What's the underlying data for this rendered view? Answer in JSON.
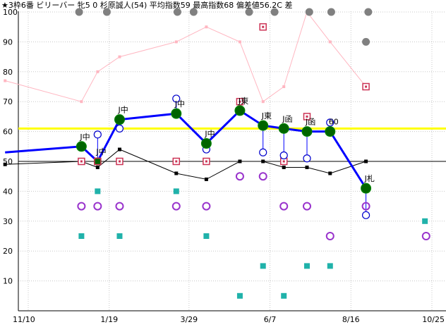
{
  "chart_data": {
    "type": "line",
    "title": "★3枠6番 ビリーバー 牝5 0 杉原誠人(54) 平均指数59 最高指数68 偏差値56.2C 差",
    "xlabel": "",
    "ylabel": "",
    "ylim": [
      0,
      100
    ],
    "yticks": [
      10,
      20,
      30,
      40,
      50,
      60,
      70,
      80,
      90,
      100
    ],
    "x_axis": {
      "ticks": [
        {
          "label": "11/10",
          "x": 0
        },
        {
          "label": "1/19",
          "x": 70
        },
        {
          "label": "3/29",
          "x": 139
        },
        {
          "label": "6/7",
          "x": 209
        },
        {
          "label": "8/16",
          "x": 279
        },
        {
          "label": "10/25",
          "x": 349
        }
      ],
      "range": [
        0,
        349
      ]
    },
    "avg_line": 61,
    "avg_line_color": "#ffff00",
    "ref_line": 50,
    "rows_top": [
      {
        "x": 44,
        "color": "#808080"
      },
      {
        "x": 68,
        "color": "#808080"
      },
      {
        "x": 129,
        "color": "#808080"
      },
      {
        "x": 143,
        "color": "#808080"
      },
      {
        "x": 191,
        "color": "#808080"
      },
      {
        "x": 213,
        "color": "#808080"
      },
      {
        "x": 243,
        "color": "#808080"
      },
      {
        "x": 262,
        "color": "#808080"
      },
      {
        "x": 294,
        "color": "#808080"
      }
    ],
    "series": [
      {
        "key": "main",
        "color": "#0000ff",
        "values": [
          [
            -20,
            53
          ],
          [
            46,
            55
          ],
          [
            60,
            50
          ],
          [
            79,
            64
          ],
          [
            128,
            66
          ],
          [
            154,
            56
          ],
          [
            183,
            67
          ],
          [
            203,
            62
          ],
          [
            221,
            61
          ],
          [
            241,
            60
          ],
          [
            261,
            60
          ],
          [
            292,
            41
          ]
        ],
        "markers": [
          [
            46,
            55
          ],
          [
            60,
            50
          ],
          [
            79,
            64
          ],
          [
            128,
            66
          ],
          [
            154,
            56
          ],
          [
            183,
            67
          ],
          [
            203,
            62
          ],
          [
            221,
            61
          ],
          [
            241,
            60
          ],
          [
            261,
            60
          ],
          [
            292,
            41
          ]
        ]
      },
      {
        "key": "black",
        "color": "#000000",
        "values": [
          [
            -20,
            49
          ],
          [
            46,
            50
          ],
          [
            60,
            48
          ],
          [
            79,
            54
          ],
          [
            128,
            46
          ],
          [
            154,
            44
          ],
          [
            183,
            50
          ],
          [
            203,
            50
          ],
          [
            221,
            48
          ],
          [
            241,
            48
          ],
          [
            261,
            46
          ],
          [
            292,
            50
          ]
        ]
      },
      {
        "key": "pink",
        "color": "#ffb6c1",
        "values": [
          [
            -20,
            77
          ],
          [
            46,
            70
          ],
          [
            60,
            80
          ],
          [
            79,
            85
          ],
          [
            128,
            90
          ],
          [
            154,
            95
          ],
          [
            183,
            90
          ],
          [
            203,
            70
          ],
          [
            221,
            75
          ],
          [
            241,
            100
          ],
          [
            261,
            90
          ],
          [
            292,
            75
          ]
        ]
      }
    ],
    "red_squares": [
      [
        46,
        50
      ],
      [
        60,
        50
      ],
      [
        79,
        50
      ],
      [
        128,
        50
      ],
      [
        154,
        50
      ],
      [
        183,
        70
      ],
      [
        203,
        95
      ],
      [
        221,
        50
      ],
      [
        241,
        65
      ],
      [
        292,
        75
      ]
    ],
    "blue_circles": [
      [
        60,
        59
      ],
      [
        79,
        61
      ],
      [
        128,
        71
      ],
      [
        154,
        54
      ],
      [
        203,
        53
      ],
      [
        221,
        52
      ],
      [
        241,
        51
      ],
      [
        261,
        63
      ],
      [
        292,
        32
      ]
    ],
    "blue_circles_sm": [
      [
        60,
        51
      ]
    ],
    "purple_circles": [
      [
        46,
        35
      ],
      [
        60,
        35
      ],
      [
        79,
        35
      ],
      [
        128,
        35
      ],
      [
        154,
        35
      ],
      [
        183,
        45
      ],
      [
        203,
        45
      ],
      [
        221,
        35
      ],
      [
        241,
        35
      ],
      [
        261,
        25
      ],
      [
        292,
        35
      ],
      [
        344,
        25
      ]
    ],
    "teal_squares": [
      [
        46,
        25
      ],
      [
        60,
        40
      ],
      [
        79,
        25
      ],
      [
        128,
        40
      ],
      [
        154,
        25
      ],
      [
        183,
        5
      ],
      [
        203,
        15
      ],
      [
        221,
        5
      ],
      [
        241,
        15
      ],
      [
        261,
        15
      ],
      [
        343,
        30
      ]
    ],
    "annotations": [
      {
        "x": 46,
        "y": 55,
        "text": "J中",
        "pos": "above"
      },
      {
        "x": 60,
        "y": 50,
        "text": "J中",
        "pos": "above"
      },
      {
        "x": 79,
        "y": 64,
        "text": "J中",
        "pos": "above"
      },
      {
        "x": 128,
        "y": 66,
        "text": "J中",
        "pos": "above"
      },
      {
        "x": 154,
        "y": 56,
        "text": "J中",
        "pos": "above"
      },
      {
        "x": 183,
        "y": 67,
        "text": "J東",
        "pos": "above"
      },
      {
        "x": 203,
        "y": 62,
        "text": "J東",
        "pos": "above"
      },
      {
        "x": 221,
        "y": 61,
        "text": "J函",
        "pos": "above"
      },
      {
        "x": 241,
        "y": 60,
        "text": "J函",
        "pos": "above"
      },
      {
        "x": 261,
        "y": 60,
        "text": "60",
        "pos": "above"
      },
      {
        "x": 292,
        "y": 41,
        "text": "J札",
        "pos": "above"
      }
    ]
  }
}
